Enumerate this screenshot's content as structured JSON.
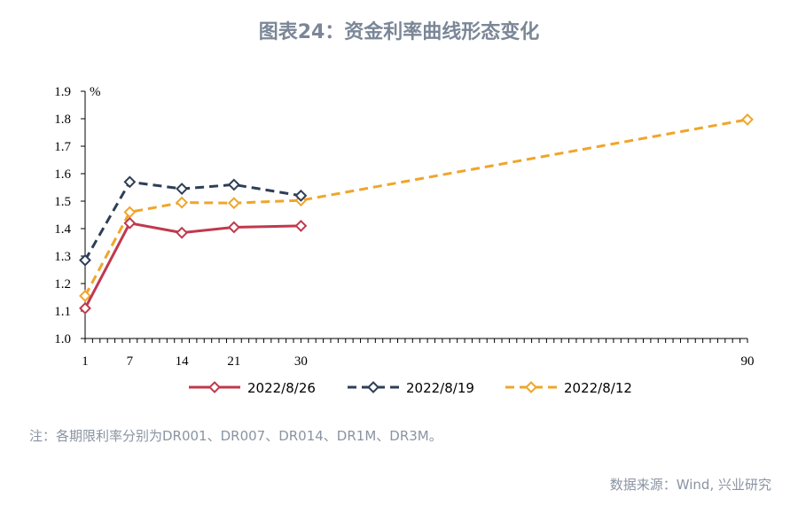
{
  "title": "图表24：资金利率曲线形态变化",
  "note": "注：各期限利率分别为DR001、DR007、DR014、DR1M、DR3M。",
  "source": "数据来源：Wind, 兴业研究",
  "chart_data": {
    "type": "line",
    "x": [
      1,
      7,
      14,
      21,
      30,
      90
    ],
    "x_tick_labels": [
      "1",
      "7",
      "14",
      "21",
      "30",
      "90"
    ],
    "y_unit": "%",
    "ylim": [
      1.0,
      1.9
    ],
    "y_ticks": [
      "1.0",
      "1.1",
      "1.2",
      "1.3",
      "1.4",
      "1.5",
      "1.6",
      "1.7",
      "1.8",
      "1.9"
    ],
    "grid": false,
    "legend_position": "bottom",
    "series": [
      {
        "name": "2022/8/26",
        "color": "#c0394d",
        "dash": "solid",
        "marker": "diamond",
        "points": [
          [
            1,
            1.11
          ],
          [
            7,
            1.42
          ],
          [
            14,
            1.385
          ],
          [
            21,
            1.405
          ],
          [
            30,
            1.41
          ]
        ]
      },
      {
        "name": "2022/8/19",
        "color": "#2e3e58",
        "dash": "dashed",
        "marker": "diamond",
        "points": [
          [
            1,
            1.285
          ],
          [
            7,
            1.57
          ],
          [
            14,
            1.545
          ],
          [
            21,
            1.56
          ],
          [
            30,
            1.52
          ]
        ]
      },
      {
        "name": "2022/8/12",
        "color": "#f0a52b",
        "dash": "dashed",
        "marker": "diamond",
        "points": [
          [
            1,
            1.155
          ],
          [
            7,
            1.46
          ],
          [
            14,
            1.495
          ],
          [
            21,
            1.493
          ],
          [
            30,
            1.503
          ],
          [
            90,
            1.797
          ]
        ]
      }
    ]
  }
}
